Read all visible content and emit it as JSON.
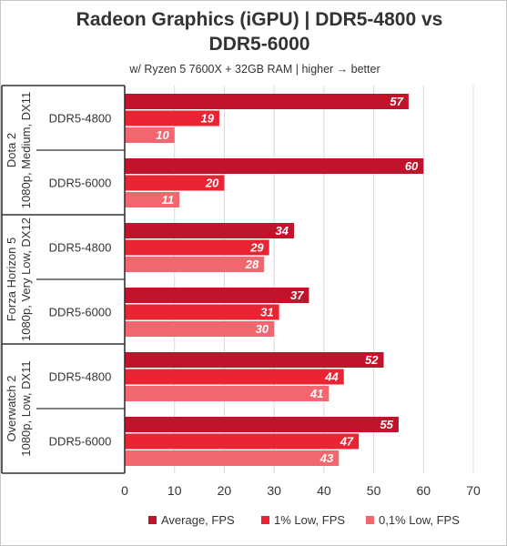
{
  "chart_data": {
    "type": "bar",
    "orientation": "horizontal",
    "title": "Radeon Graphics (iGPU) | DDR5-4800 vs DDR5-6000",
    "subtitle": "w/ Ryzen 5 7600X + 32GB RAM | higher → better",
    "xlim": [
      0,
      70
    ],
    "xticks": [
      0,
      10,
      20,
      30,
      40,
      50,
      60,
      70
    ],
    "grid": true,
    "legend_position": "bottom",
    "series": [
      {
        "name": "Average, FPS",
        "color": "#c0142a"
      },
      {
        "name": "1% Low, FPS",
        "color": "#ea2432"
      },
      {
        "name": "0,1% Low, FPS",
        "color": "#f26670"
      }
    ],
    "groups": [
      {
        "name_lines": [
          "Dota 2",
          "1080p, Medium, DX11"
        ],
        "categories": [
          {
            "label": "DDR5-4800",
            "values": [
              57,
              19,
              10
            ]
          },
          {
            "label": "DDR5-6000",
            "values": [
              60,
              20,
              11
            ]
          }
        ]
      },
      {
        "name_lines": [
          "Forza Horizon 5",
          "1080p, Very Low, DX12"
        ],
        "categories": [
          {
            "label": "DDR5-4800",
            "values": [
              34,
              29,
              28
            ]
          },
          {
            "label": "DDR5-6000",
            "values": [
              37,
              31,
              30
            ]
          }
        ]
      },
      {
        "name_lines": [
          "Overwatch 2",
          "1080p, Low, DX11"
        ],
        "categories": [
          {
            "label": "DDR5-4800",
            "values": [
              52,
              44,
              41
            ]
          },
          {
            "label": "DDR5-6000",
            "values": [
              55,
              47,
              43
            ]
          }
        ]
      }
    ]
  }
}
